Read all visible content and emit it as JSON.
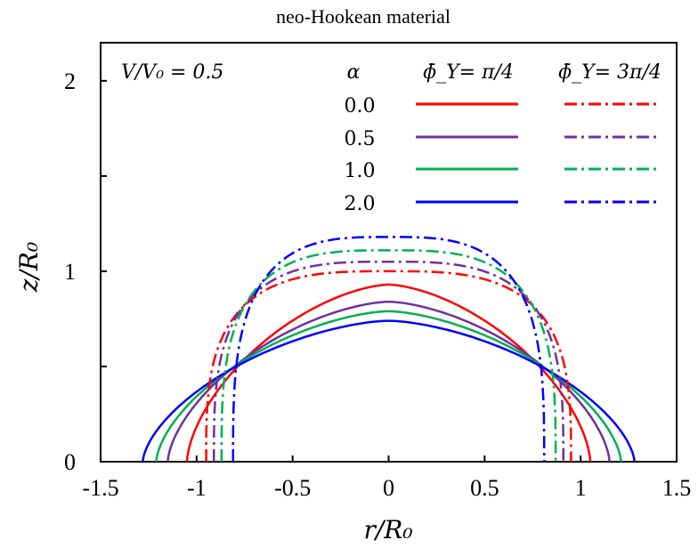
{
  "chart_data": {
    "type": "line",
    "title": "neo-Hookean material",
    "xlabel": "r/R₀",
    "ylabel": "z/R₀",
    "xlim": [
      -1.5,
      1.5
    ],
    "ylim": [
      0,
      2.2
    ],
    "x_ticks": [
      "-1.5",
      "-1",
      "-0.5",
      "0",
      "0.5",
      "1",
      "1.5"
    ],
    "y_ticks": [
      "0",
      "1",
      "2"
    ],
    "annotation": "V/V₀ = 0.5",
    "legend": {
      "placement": "top-right",
      "alpha_header": "α",
      "col1_header": "ϕ̄_Y= π/4",
      "col2_header": "ϕ̄_Y= 3π/4",
      "alpha_values": [
        "0.0",
        "0.5",
        "1.0",
        "2.0"
      ]
    },
    "colors": [
      "#ff0000",
      "#7030a0",
      "#00b050",
      "#0000ff"
    ],
    "series": [
      {
        "alpha": "0.0",
        "phi": "pi/4",
        "style": "solid",
        "base_radius": 1.05,
        "apex_height": 0.93
      },
      {
        "alpha": "0.5",
        "phi": "pi/4",
        "style": "solid",
        "base_radius": 1.15,
        "apex_height": 0.84
      },
      {
        "alpha": "1.0",
        "phi": "pi/4",
        "style": "solid",
        "base_radius": 1.21,
        "apex_height": 0.79
      },
      {
        "alpha": "2.0",
        "phi": "pi/4",
        "style": "solid",
        "base_radius": 1.28,
        "apex_height": 0.74
      },
      {
        "alpha": "0.0",
        "phi": "3pi/4",
        "style": "dashdot",
        "base_radius": 0.95,
        "apex_height": 1.0
      },
      {
        "alpha": "0.5",
        "phi": "3pi/4",
        "style": "dashdot",
        "base_radius": 0.91,
        "apex_height": 1.05
      },
      {
        "alpha": "1.0",
        "phi": "3pi/4",
        "style": "dashdot",
        "base_radius": 0.87,
        "apex_height": 1.11
      },
      {
        "alpha": "2.0",
        "phi": "3pi/4",
        "style": "dashdot",
        "base_radius": 0.81,
        "apex_height": 1.18
      }
    ]
  }
}
